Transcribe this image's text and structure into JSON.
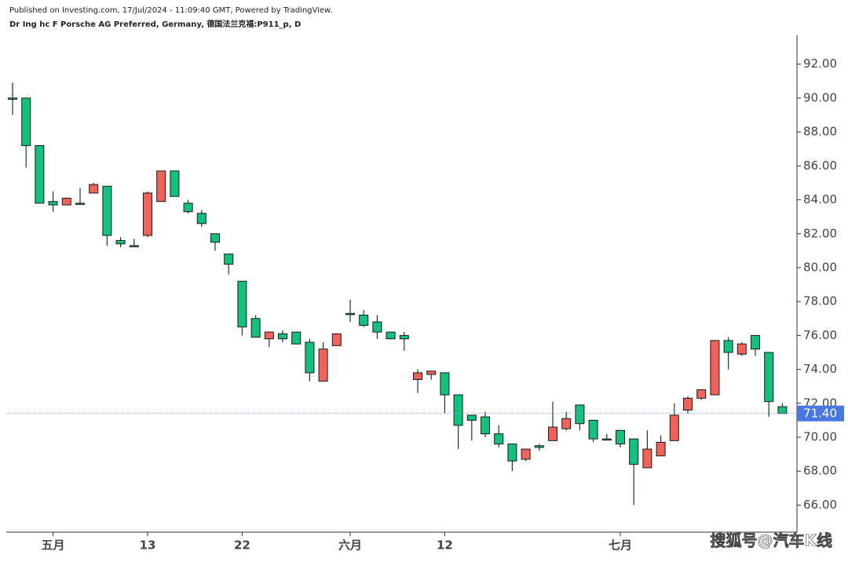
{
  "chart_data": {
    "type": "candlestick",
    "title": "Published on Investing.com, 17/Jul/2024 - 11:09:40 GMT, Powered by TradingView.",
    "subtitle": "Dr Ing hc F Porsche AG Preferred, Germany, 德国法兰克福:P911_p, D",
    "watermark": "搜狐号@汽车K线",
    "up_color": "#f0625a",
    "down_color": "#13c07c",
    "categories": [
      null,
      null,
      null,
      "五月",
      null,
      null,
      null,
      null,
      null,
      null,
      "13",
      null,
      null,
      null,
      null,
      null,
      null,
      "22",
      null,
      null,
      null,
      null,
      null,
      null,
      null,
      "六月",
      null,
      null,
      null,
      null,
      null,
      null,
      "12",
      null,
      null,
      null,
      null,
      null,
      null,
      null,
      null,
      null,
      null,
      null,
      null,
      "七月",
      null,
      null,
      null,
      null,
      null,
      null,
      null,
      null,
      null,
      null,
      null,
      null
    ],
    "open": [
      90.0,
      90.0,
      87.2,
      83.9,
      83.7,
      83.8,
      84.4,
      84.8,
      81.6,
      81.3,
      81.9,
      83.9,
      85.7,
      83.8,
      83.2,
      82.0,
      80.8,
      79.2,
      77.0,
      75.8,
      76.1,
      76.2,
      75.6,
      73.3,
      75.4,
      77.3,
      77.2,
      76.8,
      76.2,
      76.0,
      73.4,
      73.7,
      73.8,
      72.5,
      71.3,
      71.2,
      70.2,
      69.6,
      68.7,
      69.5,
      69.8,
      70.5,
      71.9,
      71.0,
      69.9,
      70.4,
      69.9,
      68.2,
      68.9,
      69.8,
      71.6,
      72.3,
      72.5,
      75.7,
      74.9,
      76.0,
      75.0,
      71.8
    ],
    "high": [
      90.9,
      90.0,
      87.2,
      84.5,
      84.1,
      84.7,
      85.0,
      84.8,
      81.8,
      81.7,
      84.5,
      85.7,
      85.7,
      84.0,
      83.4,
      82.0,
      80.8,
      79.2,
      77.2,
      76.2,
      76.3,
      76.2,
      75.8,
      75.6,
      76.1,
      78.1,
      77.5,
      77.2,
      76.2,
      76.2,
      74.0,
      73.9,
      73.8,
      72.5,
      71.3,
      71.5,
      70.7,
      69.6,
      69.3,
      69.6,
      72.1,
      71.5,
      71.9,
      71.0,
      70.2,
      70.4,
      69.9,
      70.4,
      70.1,
      72.0,
      72.4,
      72.8,
      75.7,
      75.9,
      75.6,
      76.0,
      75.0,
      72.0
    ],
    "low": [
      89.0,
      85.9,
      83.8,
      83.3,
      83.7,
      83.8,
      84.4,
      81.3,
      81.2,
      81.3,
      81.8,
      83.9,
      84.2,
      83.2,
      82.4,
      81.0,
      79.6,
      76.0,
      75.9,
      75.3,
      75.6,
      75.5,
      73.3,
      73.3,
      75.4,
      76.8,
      76.5,
      75.8,
      75.8,
      75.1,
      72.6,
      73.4,
      71.4,
      69.3,
      69.8,
      70.0,
      69.4,
      68.0,
      68.6,
      69.2,
      69.8,
      70.4,
      70.4,
      69.7,
      69.8,
      69.4,
      66.0,
      68.2,
      68.9,
      69.8,
      71.4,
      72.2,
      72.5,
      74.0,
      74.8,
      74.8,
      71.2,
      71.4
    ],
    "close": [
      90.0,
      87.2,
      83.8,
      83.7,
      84.1,
      83.8,
      84.9,
      81.9,
      81.4,
      81.3,
      84.4,
      85.7,
      84.2,
      83.3,
      82.6,
      81.5,
      80.2,
      76.5,
      75.9,
      76.2,
      75.8,
      75.5,
      73.8,
      75.2,
      76.1,
      77.3,
      76.6,
      76.2,
      75.8,
      75.8,
      73.8,
      73.9,
      72.5,
      70.7,
      71.0,
      70.2,
      69.6,
      68.6,
      69.3,
      69.4,
      70.6,
      71.1,
      70.8,
      69.9,
      69.9,
      69.6,
      68.4,
      69.3,
      69.7,
      71.3,
      72.3,
      72.8,
      75.7,
      75.0,
      75.5,
      75.2,
      72.1,
      71.4
    ],
    "last_price": {
      "value": 71.4,
      "label": "71.40"
    },
    "ylim": [
      64.4,
      93.7
    ],
    "yticks": [
      {
        "value": 66,
        "label": "66.00"
      },
      {
        "value": 68,
        "label": "68.00"
      },
      {
        "value": 70,
        "label": "70.00"
      },
      {
        "value": 72,
        "label": "72.00"
      },
      {
        "value": 74,
        "label": "74.00"
      },
      {
        "value": 76,
        "label": "76.00"
      },
      {
        "value": 78,
        "label": "78.00"
      },
      {
        "value": 80,
        "label": "80.00"
      },
      {
        "value": 82,
        "label": "82.00"
      },
      {
        "value": 84,
        "label": "84.00"
      },
      {
        "value": 86,
        "label": "86.00"
      },
      {
        "value": 88,
        "label": "88.00"
      },
      {
        "value": 90,
        "label": "90.00"
      },
      {
        "value": 92,
        "label": "92.00"
      }
    ]
  }
}
